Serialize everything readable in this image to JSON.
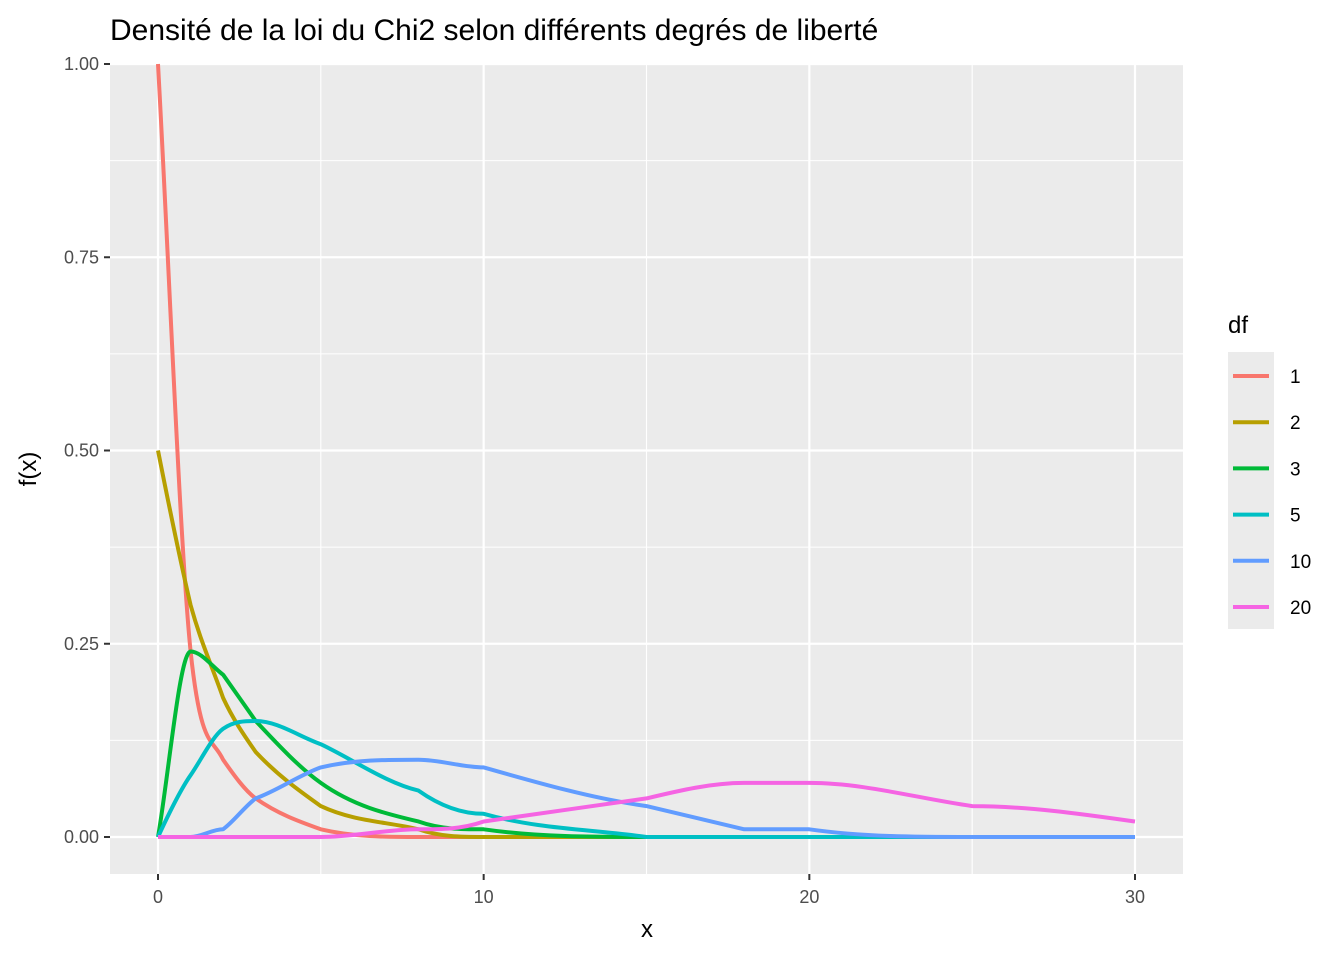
{
  "chart_data": {
    "type": "line",
    "title": "Densité de la loi du Chi2 selon différents degrés de liberté",
    "xlabel": "x",
    "ylabel": "f(x)",
    "xlim": [
      0,
      30
    ],
    "ylim": [
      0,
      1
    ],
    "x_ticks": [
      0,
      10,
      20,
      30
    ],
    "y_ticks": [
      0.0,
      0.25,
      0.5,
      0.75,
      1.0
    ],
    "x_tick_labels": [
      "0",
      "10",
      "20",
      "30"
    ],
    "y_tick_labels": [
      "0.00",
      "0.25",
      "0.50",
      "0.75",
      "1.00"
    ],
    "grid": true,
    "legend": {
      "title": "df",
      "placement": "right"
    },
    "x": [
      0,
      1,
      2,
      3,
      5,
      8,
      10,
      15,
      18,
      20,
      25,
      30
    ],
    "series": [
      {
        "name": "1",
        "color": "#F8766D",
        "values": [
          1.0,
          0.242,
          0.104,
          0.051,
          0.015,
          0.003,
          0.002,
          0.0001,
          0.0,
          0.0,
          0.0,
          0.0
        ]
      },
      {
        "name": "2",
        "color": "#B79F00",
        "values": [
          0.5,
          0.303,
          0.184,
          0.112,
          0.041,
          0.009,
          0.003,
          0.0003,
          0.0,
          0.0,
          0.0,
          0.0
        ]
      },
      {
        "name": "3",
        "color": "#00BA38",
        "values": [
          0.0,
          0.242,
          0.208,
          0.154,
          0.073,
          0.021,
          0.009,
          0.001,
          0.0,
          0.0,
          0.0,
          0.0
        ]
      },
      {
        "name": "5",
        "color": "#00BFC4",
        "values": [
          0.0,
          0.081,
          0.138,
          0.154,
          0.122,
          0.055,
          0.028,
          0.004,
          0.001,
          0.0,
          0.0,
          0.0
        ]
      },
      {
        "name": "10",
        "color": "#619CFF",
        "values": [
          0.0,
          0.0008,
          0.015,
          0.047,
          0.088,
          0.098,
          0.088,
          0.035,
          0.015,
          0.008,
          0.001,
          0.0002
        ]
      },
      {
        "name": "20",
        "color": "#F564E3",
        "values": [
          0.0,
          0.0,
          0.0,
          0.0,
          0.0005,
          0.009,
          0.018,
          0.052,
          0.066,
          0.066,
          0.044,
          0.017
        ]
      }
    ]
  }
}
